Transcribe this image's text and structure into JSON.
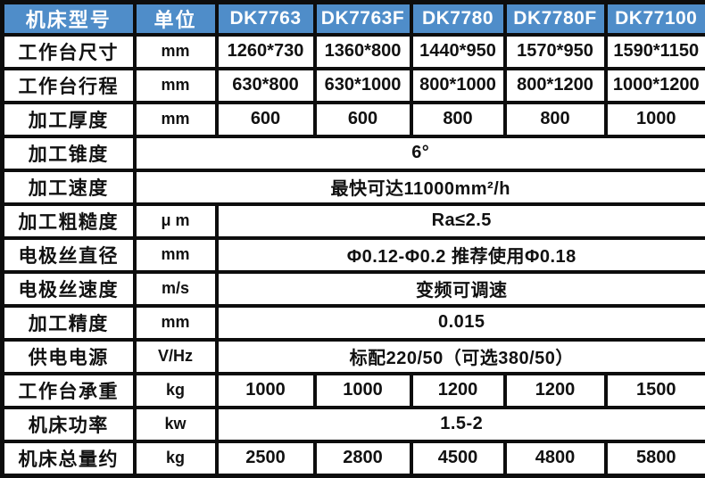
{
  "table": {
    "title_semantic": "wire-cut EDM machine specification table",
    "colors": {
      "header_bg": "#4f8dc9",
      "header_text": "#ffffff",
      "border": "#0d0d0d",
      "cell_bg": "#ffffff",
      "body_text": "#111111"
    },
    "header": {
      "model_label": "机床型号",
      "unit_label": "单位",
      "models": [
        "DK7763",
        "DK7763F",
        "DK7780",
        "DK7780F",
        "DK77100"
      ]
    },
    "rows": [
      {
        "label": "工作台尺寸",
        "unit": "mm",
        "values": [
          "1260*730",
          "1360*800",
          "1440*950",
          "1570*950",
          "1590*1150"
        ]
      },
      {
        "label": "工作台行程",
        "unit": "mm",
        "values": [
          "630*800",
          "630*1000",
          "800*1000",
          "800*1200",
          "1000*1200"
        ]
      },
      {
        "label": "加工厚度",
        "unit": "mm",
        "values": [
          "600",
          "600",
          "800",
          "800",
          "1000"
        ]
      },
      {
        "label": "加工锥度",
        "unit": "",
        "merged": "6°",
        "merge_span": "unit+values"
      },
      {
        "label": "加工速度",
        "unit": "",
        "merged": "最快可达11000mm²/h",
        "merge_span": "unit+values"
      },
      {
        "label": "加工粗糙度",
        "unit": "μ m",
        "merged": "Ra≤2.5",
        "merge_span": "values"
      },
      {
        "label": "电极丝直径",
        "unit": "mm",
        "merged": "Φ0.12-Φ0.2 推荐使用Φ0.18",
        "merge_span": "values"
      },
      {
        "label": "电极丝速度",
        "unit": "m/s",
        "merged": "变频可调速",
        "merge_span": "values"
      },
      {
        "label": "加工精度",
        "unit": "mm",
        "merged": "0.015",
        "merge_span": "values"
      },
      {
        "label": "供电电源",
        "unit": "V/Hz",
        "merged": "标配220/50（可选380/50）",
        "merge_span": "values"
      },
      {
        "label": "工作台承重",
        "unit": "kg",
        "values": [
          "1000",
          "1000",
          "1200",
          "1200",
          "1500"
        ]
      },
      {
        "label": "机床功率",
        "unit": "kw",
        "merged": "1.5-2",
        "merge_span": "values"
      },
      {
        "label": "机床总量约",
        "unit": "kg",
        "values": [
          "2500",
          "2800",
          "4500",
          "4800",
          "5800"
        ]
      }
    ]
  }
}
